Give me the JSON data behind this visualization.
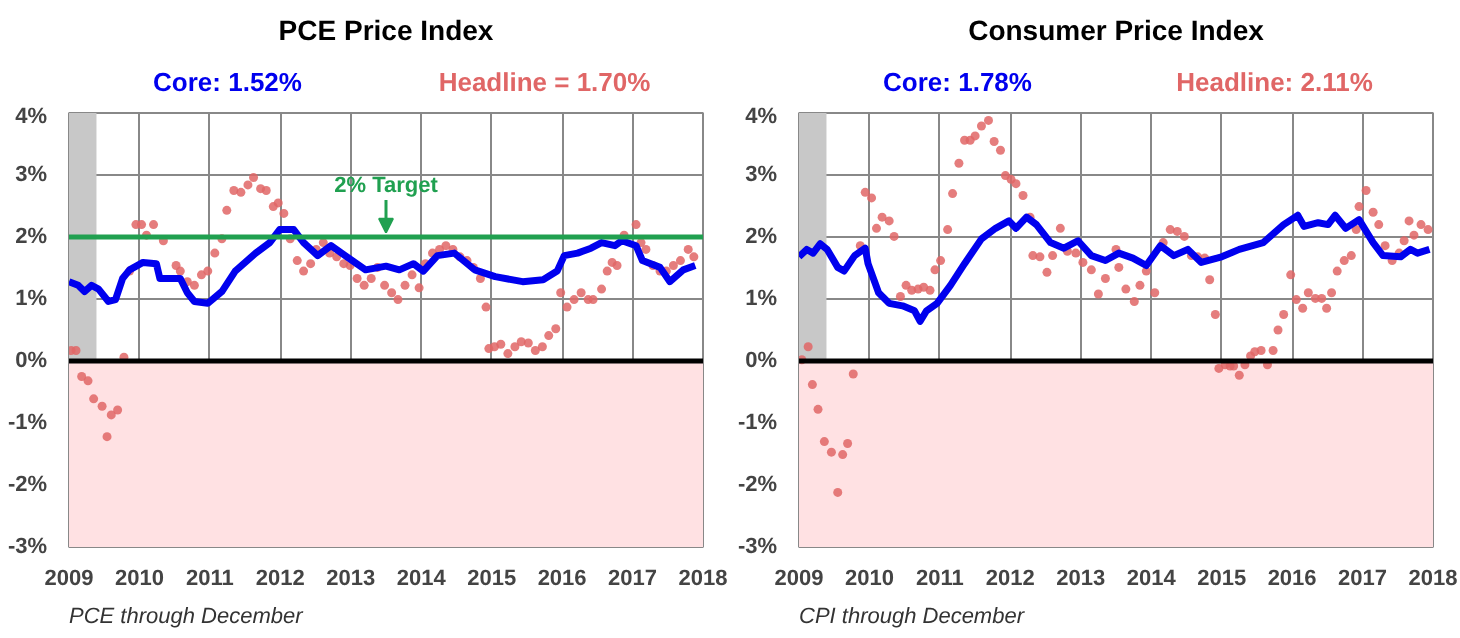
{
  "chart_data": [
    {
      "type": "line",
      "title": "PCE Price Index",
      "legend": "top",
      "grid": true,
      "xlim": [
        2009,
        2018
      ],
      "xticks": [
        2009,
        2010,
        2011,
        2012,
        2013,
        2014,
        2015,
        2016,
        2017,
        2018
      ],
      "ylim": [
        -3,
        4
      ],
      "yticks": [
        {
          "value": -3,
          "label": "-3%"
        },
        {
          "value": -2,
          "label": "-2%"
        },
        {
          "value": -1,
          "label": "-1%"
        },
        {
          "value": 0,
          "label": "0%"
        },
        {
          "value": 1,
          "label": "1%"
        },
        {
          "value": 2,
          "label": "2%"
        },
        {
          "value": 3,
          "label": "3%"
        },
        {
          "value": 4,
          "label": "4%"
        }
      ],
      "ref_lines": [
        {
          "axis": "y",
          "value": 0,
          "label": null,
          "color": "#000000"
        },
        {
          "axis": "y",
          "value": 2,
          "label": "2% Target",
          "color": "#20a050"
        }
      ],
      "bands": [
        {
          "axis": "x",
          "from": 2009,
          "to": 2009.39,
          "label": null,
          "color": "#c8c8c8"
        },
        {
          "axis": "y",
          "from": -3,
          "to": 0,
          "label": null,
          "color": "#ffe1e3"
        }
      ],
      "annotations": [
        "PCE through December"
      ],
      "series": [
        {
          "name": "Headline = 1.70%",
          "type": "scatter",
          "marker": "circle",
          "color": "#e06666",
          "x": [
            2009.03,
            2009.1,
            2009.18,
            2009.27,
            2009.35,
            2009.47,
            2009.54,
            2009.6,
            2009.69,
            2009.78,
            2009.86,
            2009.95,
            2010.03,
            2010.1,
            2010.2,
            2010.34,
            2010.52,
            2010.58,
            2010.68,
            2010.78,
            2010.88,
            2010.97,
            2011.07,
            2011.17,
            2011.24,
            2011.34,
            2011.44,
            2011.54,
            2011.62,
            2011.72,
            2011.8,
            2011.9,
            2011.97,
            2012.05,
            2012.14,
            2012.24,
            2012.33,
            2012.43,
            2012.51,
            2012.61,
            2012.7,
            2012.8,
            2012.9,
            2012.99,
            2013.09,
            2013.19,
            2013.29,
            2013.38,
            2013.48,
            2013.58,
            2013.67,
            2013.77,
            2013.87,
            2013.97,
            2014.06,
            2014.16,
            2014.26,
            2014.35,
            2014.45,
            2014.55,
            2014.65,
            2014.74,
            2014.84,
            2014.92,
            2014.96,
            2015.04,
            2015.13,
            2015.23,
            2015.33,
            2015.42,
            2015.52,
            2015.62,
            2015.72,
            2015.81,
            2015.91,
            2015.98,
            2016.07,
            2016.17,
            2016.27,
            2016.37,
            2016.44,
            2016.56,
            2016.64,
            2016.71,
            2016.78,
            2016.88,
            2017.05,
            2017.12,
            2017.19,
            2017.29,
            2017.39,
            2017.48,
            2017.58,
            2017.68,
            2017.79,
            2017.87
          ],
          "values": [
            0.17,
            0.17,
            -0.25,
            -0.32,
            -0.61,
            -0.73,
            -1.22,
            -0.87,
            -0.79,
            0.06,
            1.45,
            2.2,
            2.2,
            2.03,
            2.2,
            1.94,
            1.54,
            1.45,
            1.28,
            1.22,
            1.39,
            1.45,
            1.74,
            1.97,
            2.43,
            2.75,
            2.72,
            2.84,
            2.96,
            2.78,
            2.75,
            2.49,
            2.55,
            2.38,
            1.97,
            1.62,
            1.45,
            1.57,
            1.8,
            1.91,
            1.74,
            1.68,
            1.57,
            1.54,
            1.33,
            1.22,
            1.33,
            1.51,
            1.22,
            1.1,
            0.99,
            1.22,
            1.39,
            1.18,
            1.57,
            1.74,
            1.8,
            1.86,
            1.8,
            1.68,
            1.62,
            1.51,
            1.33,
            0.87,
            0.2,
            0.23,
            0.27,
            0.12,
            0.23,
            0.31,
            0.29,
            0.17,
            0.23,
            0.41,
            0.52,
            1.1,
            0.87,
            0.99,
            1.1,
            0.99,
            0.99,
            1.16,
            1.45,
            1.59,
            1.54,
            2.03,
            2.2,
            1.91,
            1.8,
            1.54,
            1.45,
            1.45,
            1.54,
            1.62,
            1.8,
            1.68
          ]
        },
        {
          "name": "Core: 1.52%",
          "color": "#0000ee",
          "x": [
            2009.0,
            2009.13,
            2009.22,
            2009.32,
            2009.42,
            2009.56,
            2009.66,
            2009.76,
            2009.86,
            2010.05,
            2010.24,
            2010.29,
            2010.58,
            2010.68,
            2010.78,
            2010.97,
            2011.17,
            2011.36,
            2011.65,
            2011.85,
            2011.99,
            2012.19,
            2012.33,
            2012.53,
            2012.72,
            2012.92,
            2013.21,
            2013.5,
            2013.69,
            2013.89,
            2014.03,
            2014.23,
            2014.47,
            2014.76,
            2015.05,
            2015.44,
            2015.73,
            2015.93,
            2016.03,
            2016.22,
            2016.41,
            2016.56,
            2016.75,
            2016.85,
            2017.05,
            2017.14,
            2017.39,
            2017.53,
            2017.72,
            2017.89
          ],
          "values": [
            1.28,
            1.22,
            1.12,
            1.22,
            1.16,
            0.96,
            0.99,
            1.33,
            1.47,
            1.59,
            1.57,
            1.33,
            1.33,
            1.1,
            0.96,
            0.93,
            1.12,
            1.45,
            1.74,
            1.91,
            2.12,
            2.12,
            1.91,
            1.7,
            1.86,
            1.7,
            1.47,
            1.53,
            1.47,
            1.57,
            1.45,
            1.7,
            1.74,
            1.47,
            1.36,
            1.28,
            1.31,
            1.45,
            1.7,
            1.74,
            1.82,
            1.91,
            1.86,
            1.94,
            1.86,
            1.62,
            1.51,
            1.28,
            1.47,
            1.54
          ]
        }
      ]
    },
    {
      "type": "line",
      "title": "Consumer Price Index",
      "legend": "top",
      "grid": true,
      "xlim": [
        2009,
        2018
      ],
      "xticks": [
        2009,
        2010,
        2011,
        2012,
        2013,
        2014,
        2015,
        2016,
        2017,
        2018
      ],
      "ylim": [
        -3,
        4
      ],
      "yticks": [
        {
          "value": -3,
          "label": "-3%"
        },
        {
          "value": -2,
          "label": "-2%"
        },
        {
          "value": -1,
          "label": "-1%"
        },
        {
          "value": 0,
          "label": "0%"
        },
        {
          "value": 1,
          "label": "1%"
        },
        {
          "value": 2,
          "label": "2%"
        },
        {
          "value": 3,
          "label": "3%"
        },
        {
          "value": 4,
          "label": "4%"
        }
      ],
      "ref_lines": [
        {
          "axis": "y",
          "value": 0,
          "label": null,
          "color": "#000000"
        }
      ],
      "bands": [
        {
          "axis": "x",
          "from": 2009,
          "to": 2009.39,
          "label": null,
          "color": "#c8c8c8"
        },
        {
          "axis": "y",
          "from": -3,
          "to": 0,
          "label": null,
          "color": "#ffe1e3"
        }
      ],
      "annotations": [
        "CPI through December"
      ],
      "series": [
        {
          "name": "Headline: 2.11%",
          "type": "scatter",
          "marker": "circle",
          "color": "#e06666",
          "x": [
            2009.04,
            2009.13,
            2009.19,
            2009.27,
            2009.36,
            2009.46,
            2009.55,
            2009.62,
            2009.69,
            2009.77,
            2009.87,
            2009.94,
            2010.03,
            2010.1,
            2010.18,
            2010.28,
            2010.35,
            2010.44,
            2010.52,
            2010.6,
            2010.69,
            2010.77,
            2010.86,
            2010.93,
            2011.01,
            2011.11,
            2011.18,
            2011.27,
            2011.35,
            2011.43,
            2011.5,
            2011.59,
            2011.69,
            2011.77,
            2011.86,
            2011.93,
            2012.01,
            2012.08,
            2012.18,
            2012.28,
            2012.32,
            2012.42,
            2012.52,
            2012.6,
            2012.71,
            2012.81,
            2012.93,
            2013.03,
            2013.15,
            2013.25,
            2013.35,
            2013.5,
            2013.54,
            2013.64,
            2013.76,
            2013.84,
            2013.93,
            2014.05,
            2014.17,
            2014.27,
            2014.37,
            2014.47,
            2014.57,
            2014.66,
            2014.76,
            2014.83,
            2014.91,
            2014.96,
            2015.05,
            2015.12,
            2015.17,
            2015.25,
            2015.33,
            2015.41,
            2015.47,
            2015.56,
            2015.65,
            2015.73,
            2015.8,
            2015.88,
            2015.98,
            2016.06,
            2016.15,
            2016.23,
            2016.33,
            2016.42,
            2016.49,
            2016.56,
            2016.64,
            2016.74,
            2016.84,
            2016.91,
            2016.95,
            2017.05,
            2017.15,
            2017.23,
            2017.32,
            2017.42,
            2017.52,
            2017.59,
            2017.66,
            2017.73,
            2017.83,
            2017.93
          ],
          "values": [
            0.02,
            0.23,
            -0.38,
            -0.78,
            -1.3,
            -1.47,
            -2.12,
            -1.51,
            -1.33,
            -0.21,
            1.86,
            2.72,
            2.63,
            2.14,
            2.32,
            2.26,
            2.01,
            1.04,
            1.22,
            1.14,
            1.16,
            1.19,
            1.14,
            1.47,
            1.62,
            2.12,
            2.7,
            3.19,
            3.56,
            3.56,
            3.63,
            3.79,
            3.88,
            3.54,
            3.4,
            2.99,
            2.93,
            2.86,
            2.67,
            2.32,
            1.7,
            1.68,
            1.43,
            1.7,
            2.14,
            1.77,
            1.74,
            1.59,
            1.47,
            1.08,
            1.33,
            1.8,
            1.51,
            1.16,
            0.96,
            1.22,
            1.45,
            1.1,
            1.91,
            2.12,
            2.09,
            2.01,
            1.7,
            1.68,
            1.66,
            1.31,
            0.75,
            -0.12,
            -0.06,
            -0.08,
            -0.08,
            -0.23,
            -0.06,
            0.08,
            0.15,
            0.17,
            -0.06,
            0.17,
            0.5,
            0.75,
            1.39,
            0.99,
            0.85,
            1.1,
            1.01,
            1.01,
            0.85,
            1.1,
            1.45,
            1.62,
            1.7,
            2.12,
            2.49,
            2.75,
            2.4,
            2.2,
            1.86,
            1.62,
            1.74,
            1.94,
            2.26,
            2.03,
            2.2,
            2.12
          ]
        },
        {
          "name": "Core: 1.78%",
          "color": "#0000ee",
          "x": [
            2009.0,
            2009.11,
            2009.2,
            2009.3,
            2009.4,
            2009.55,
            2009.64,
            2009.79,
            2009.94,
            2009.98,
            2010.13,
            2010.28,
            2010.47,
            2010.64,
            2010.72,
            2010.81,
            2010.96,
            2011.15,
            2011.35,
            2011.59,
            2011.79,
            2011.98,
            2012.08,
            2012.23,
            2012.37,
            2012.57,
            2012.76,
            2012.96,
            2013.15,
            2013.35,
            2013.54,
            2013.74,
            2013.93,
            2014.13,
            2014.32,
            2014.52,
            2014.71,
            2015.0,
            2015.25,
            2015.59,
            2015.88,
            2016.08,
            2016.17,
            2016.37,
            2016.51,
            2016.61,
            2016.76,
            2016.95,
            2017.15,
            2017.29,
            2017.54,
            2017.68,
            2017.78,
            2017.95
          ],
          "values": [
            1.68,
            1.8,
            1.74,
            1.89,
            1.8,
            1.51,
            1.45,
            1.7,
            1.82,
            1.57,
            1.1,
            0.93,
            0.89,
            0.81,
            0.64,
            0.81,
            0.93,
            1.22,
            1.57,
            1.97,
            2.14,
            2.26,
            2.14,
            2.32,
            2.2,
            1.91,
            1.82,
            1.94,
            1.7,
            1.62,
            1.74,
            1.66,
            1.54,
            1.86,
            1.7,
            1.8,
            1.59,
            1.68,
            1.8,
            1.91,
            2.2,
            2.35,
            2.17,
            2.23,
            2.2,
            2.35,
            2.14,
            2.28,
            1.91,
            1.7,
            1.68,
            1.8,
            1.74,
            1.8
          ]
        }
      ]
    }
  ]
}
